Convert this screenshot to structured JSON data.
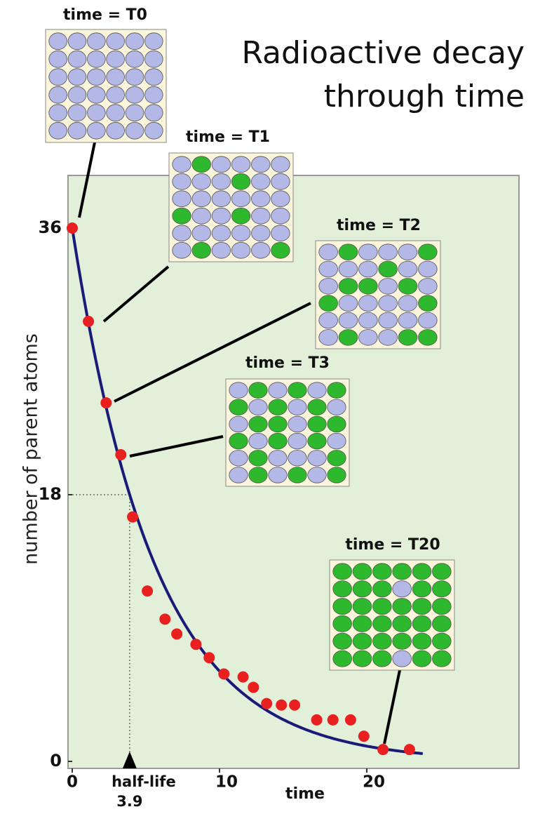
{
  "chart_data": {
    "type": "scatter",
    "title": "Radioactive decay through time",
    "x_label": "time",
    "y_label": "number of parent atoms",
    "x": [
      0,
      1.1,
      2.3,
      3.3,
      4.1,
      5.1,
      6.3,
      7.1,
      8.4,
      9.3,
      10.3,
      11.6,
      12.3,
      13.2,
      14.2,
      15.1,
      16.6,
      17.7,
      18.9,
      19.8,
      21.1,
      22.9
    ],
    "values": [
      36,
      29.7,
      24.2,
      20.7,
      16.5,
      11.5,
      9.6,
      8.6,
      7.9,
      7.0,
      5.9,
      5.7,
      5.0,
      3.9,
      3.8,
      3.8,
      2.8,
      2.8,
      2.8,
      1.7,
      0.8,
      0.8
    ],
    "color": "#e82020",
    "curve_color": "#1a1a78",
    "background": "#e2f0da",
    "xlim": [
      0,
      30
    ],
    "ylim": [
      0,
      36
    ],
    "xticks": [
      0,
      10,
      20
    ],
    "yticks": [
      0,
      18,
      36
    ],
    "half_life": 3.9,
    "half_life_label": "half-life",
    "insets": [
      "time = T0",
      "time = T1",
      "time = T2",
      "time = T3",
      "time = T20"
    ]
  }
}
